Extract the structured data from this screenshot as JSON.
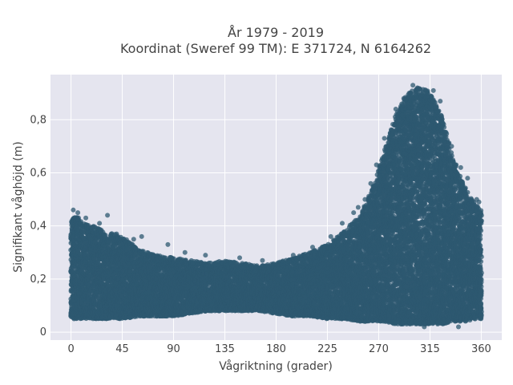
{
  "chart_data": {
    "type": "scatter",
    "title": "År 1979 - 2019",
    "subtitle": "Koordinat (Sweref 99 TM): E 371724, N 6164262",
    "xlabel": "Vågriktning (grader)",
    "ylabel": "Signifikant våghöjd (m)",
    "xlim": [
      -18,
      378
    ],
    "ylim": [
      -0.03,
      0.97
    ],
    "x_ticks": [
      0,
      45,
      90,
      135,
      180,
      225,
      270,
      315,
      360
    ],
    "x_tick_labels": [
      "0",
      "45",
      "90",
      "135",
      "180",
      "225",
      "270",
      "315",
      "360"
    ],
    "y_ticks": [
      0,
      0.2,
      0.4,
      0.6,
      0.8
    ],
    "y_tick_labels": [
      "0",
      "0,2",
      "0,4",
      "0,6",
      "0,8"
    ],
    "grid": true,
    "marker_color": "#2e5870",
    "background_color": "#e5e5ef",
    "envelope": {
      "direction_deg": [
        0,
        5,
        10,
        20,
        30,
        45,
        60,
        75,
        90,
        105,
        120,
        135,
        150,
        165,
        180,
        195,
        210,
        225,
        240,
        255,
        265,
        275,
        285,
        295,
        305,
        315,
        325,
        335,
        345,
        355,
        360
      ],
      "min_height_m": [
        0.05,
        0.05,
        0.05,
        0.05,
        0.05,
        0.05,
        0.06,
        0.06,
        0.06,
        0.07,
        0.08,
        0.08,
        0.08,
        0.08,
        0.07,
        0.06,
        0.06,
        0.05,
        0.05,
        0.04,
        0.04,
        0.04,
        0.03,
        0.03,
        0.03,
        0.03,
        0.03,
        0.04,
        0.04,
        0.05,
        0.05
      ],
      "max_height_m": [
        0.42,
        0.44,
        0.41,
        0.4,
        0.38,
        0.36,
        0.31,
        0.29,
        0.28,
        0.27,
        0.26,
        0.27,
        0.26,
        0.25,
        0.26,
        0.28,
        0.3,
        0.33,
        0.38,
        0.45,
        0.55,
        0.68,
        0.82,
        0.9,
        0.92,
        0.91,
        0.82,
        0.66,
        0.55,
        0.48,
        0.46
      ]
    },
    "outliers": [
      {
        "x": 2,
        "y": 0.46
      },
      {
        "x": 6,
        "y": 0.45
      },
      {
        "x": 13,
        "y": 0.43
      },
      {
        "x": 25,
        "y": 0.41
      },
      {
        "x": 32,
        "y": 0.44
      },
      {
        "x": 40,
        "y": 0.37
      },
      {
        "x": 55,
        "y": 0.35
      },
      {
        "x": 62,
        "y": 0.36
      },
      {
        "x": 85,
        "y": 0.33
      },
      {
        "x": 100,
        "y": 0.3
      },
      {
        "x": 118,
        "y": 0.29
      },
      {
        "x": 148,
        "y": 0.28
      },
      {
        "x": 168,
        "y": 0.27
      },
      {
        "x": 195,
        "y": 0.29
      },
      {
        "x": 212,
        "y": 0.32
      },
      {
        "x": 228,
        "y": 0.36
      },
      {
        "x": 238,
        "y": 0.41
      },
      {
        "x": 248,
        "y": 0.45
      },
      {
        "x": 252,
        "y": 0.47
      },
      {
        "x": 258,
        "y": 0.5
      },
      {
        "x": 263,
        "y": 0.56
      },
      {
        "x": 268,
        "y": 0.63
      },
      {
        "x": 275,
        "y": 0.73
      },
      {
        "x": 285,
        "y": 0.84
      },
      {
        "x": 292,
        "y": 0.88
      },
      {
        "x": 300,
        "y": 0.93
      },
      {
        "x": 304,
        "y": 0.92
      },
      {
        "x": 318,
        "y": 0.91
      },
      {
        "x": 324,
        "y": 0.87
      },
      {
        "x": 334,
        "y": 0.7
      },
      {
        "x": 338,
        "y": 0.63
      },
      {
        "x": 342,
        "y": 0.62
      },
      {
        "x": 348,
        "y": 0.58
      },
      {
        "x": 356,
        "y": 0.5
      },
      {
        "x": 358,
        "y": 0.49
      },
      {
        "x": 310,
        "y": 0.02
      },
      {
        "x": 340,
        "y": 0.02
      }
    ]
  }
}
